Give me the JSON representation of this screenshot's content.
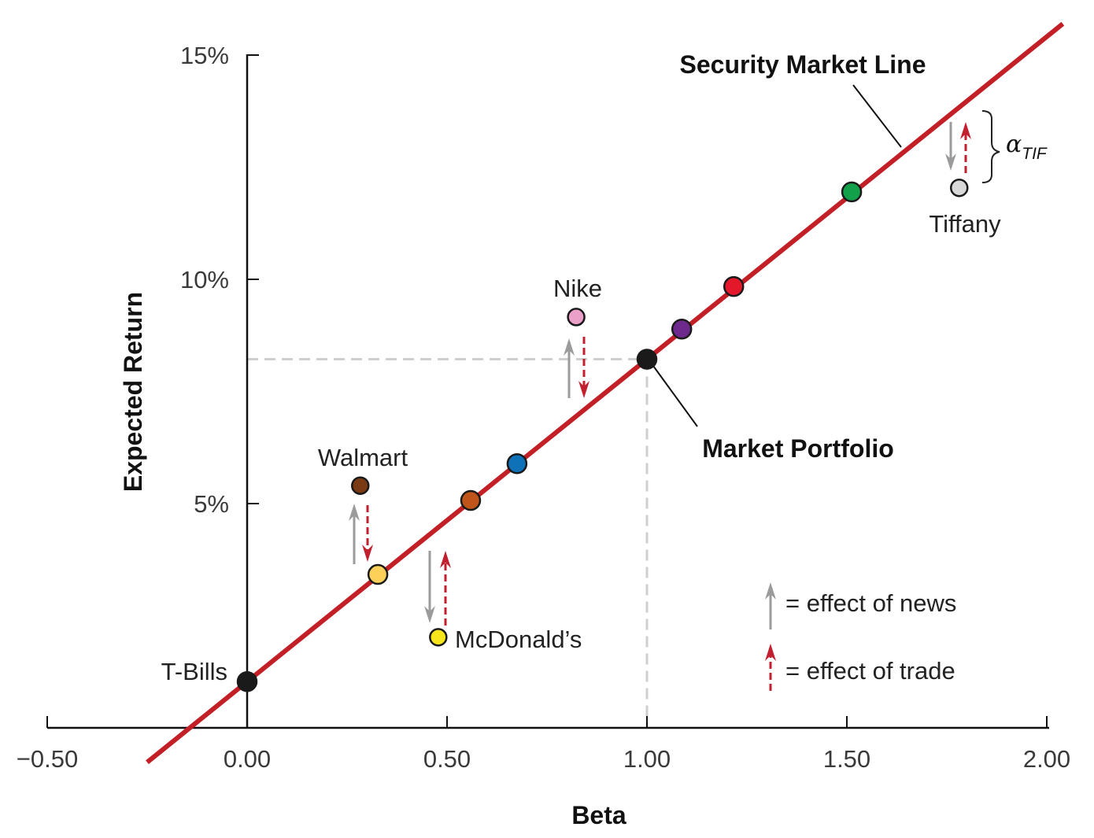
{
  "chart_data": {
    "type": "scatter",
    "title": "Security Market Line",
    "xlabel": "Beta",
    "ylabel": "Expected Return",
    "xlim": [
      -0.5,
      2.0
    ],
    "ylim": [
      0,
      15
    ],
    "x_ticks": [
      {
        "value": -0.5,
        "label": "−0.50"
      },
      {
        "value": 0,
        "label": "0.00"
      },
      {
        "value": 0.5,
        "label": "0.50"
      },
      {
        "value": 1.0,
        "label": "1.00"
      },
      {
        "value": 1.5,
        "label": "1.50"
      },
      {
        "value": 2.0,
        "label": "2.00"
      }
    ],
    "y_ticks": [
      {
        "value": 5,
        "label": "5%"
      },
      {
        "value": 10,
        "label": "10%"
      },
      {
        "value": 15,
        "label": "15%"
      }
    ],
    "sml": {
      "label": "Security Market Line",
      "intercept": 1.03,
      "market_return": 8.22,
      "color": "#c21f26"
    },
    "market_portfolio": {
      "label": "Market Portfolio",
      "beta": 1.0,
      "return": 8.22
    },
    "points": [
      {
        "name": "T-Bills",
        "label": "T-Bills",
        "beta": 0.0,
        "return": 1.03,
        "color": "#1a1a1a"
      },
      {
        "name": "walmart-after",
        "beta": 0.327,
        "return": 3.42,
        "color": "#fdd05a"
      },
      {
        "name": "orange",
        "beta": 0.559,
        "return": 5.07,
        "color": "#c0551c"
      },
      {
        "name": "blue",
        "beta": 0.675,
        "return": 5.89,
        "color": "#0f72b8"
      },
      {
        "name": "market",
        "beta": 1.0,
        "return": 8.22,
        "color": "#1a1a1a"
      },
      {
        "name": "purple",
        "beta": 1.087,
        "return": 8.89,
        "color": "#6d2a8c"
      },
      {
        "name": "red",
        "beta": 1.217,
        "return": 9.84,
        "color": "#e3182b"
      },
      {
        "name": "green",
        "beta": 1.512,
        "return": 11.95,
        "color": "#12a14a"
      },
      {
        "name": "Walmart",
        "label": "Walmart",
        "beta": 0.283,
        "return": 5.4,
        "color": "#7a3b14"
      },
      {
        "name": "McDonald's",
        "label": "McDonald’s",
        "beta": 0.478,
        "return": 2.02,
        "color": "#f7e51b"
      },
      {
        "name": "Nike",
        "label": "Nike",
        "beta": 0.823,
        "return": 9.16,
        "color": "#eaa0c8"
      },
      {
        "name": "Tiffany",
        "label": "Tiffany",
        "beta": 1.781,
        "return": 12.04,
        "color": "#d9d9d9"
      }
    ],
    "alpha_label": {
      "symbol": "α",
      "subscript": "TIF"
    },
    "legend": {
      "placement": "bottom-right",
      "news": "= effect of news",
      "trade": "= effect of trade",
      "news_color": "#9b9b9b",
      "trade_color": "#c21f2f"
    }
  }
}
